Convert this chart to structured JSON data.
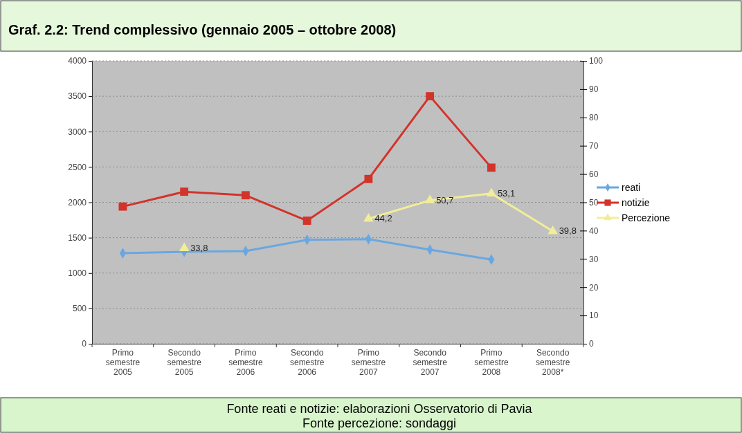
{
  "chart_data": {
    "type": "line",
    "title": "Graf. 2.2: Trend complessivo (gennaio 2005 – ottobre 2008)",
    "categories": [
      "Primo semestre 2005",
      "Secondo semestre 2005",
      "Primo semestre 2006",
      "Secondo semestre 2006",
      "Primo semestre 2007",
      "Secondo semestre 2007",
      "Primo semestre 2008",
      "Secondo semestre 2008*"
    ],
    "series": [
      {
        "name": "reati",
        "color": "#6aa7e0",
        "marker": "diamond",
        "values": [
          1280,
          1300,
          1310,
          1470,
          1480,
          1330,
          1190,
          null
        ]
      },
      {
        "name": "notizie",
        "color": "#d2332b",
        "marker": "square",
        "values": [
          1940,
          2150,
          2100,
          1740,
          2330,
          3500,
          2490,
          null
        ]
      },
      {
        "name": "Percezione",
        "color": "#f2ee98",
        "marker": "triangle",
        "axis": "y2",
        "values": [
          null,
          33.8,
          null,
          null,
          44.2,
          50.7,
          53.1,
          39.8
        ],
        "value_labels": [
          null,
          "33,8",
          null,
          null,
          "44,2",
          "50,7",
          "53,1",
          "39,8"
        ]
      }
    ],
    "ylim": [
      0,
      4000
    ],
    "yticks": [
      0,
      500,
      1000,
      1500,
      2000,
      2500,
      3000,
      3500,
      4000
    ],
    "y2lim": [
      0,
      100
    ],
    "y2ticks": [
      0,
      10,
      20,
      30,
      40,
      50,
      60,
      70,
      80,
      90,
      100
    ],
    "grid": "y",
    "legend": "right",
    "annotations": [
      "Fonte reati e notizie: elaborazioni Osservatorio di Pavia",
      "Fonte percezione: sondaggi"
    ]
  }
}
